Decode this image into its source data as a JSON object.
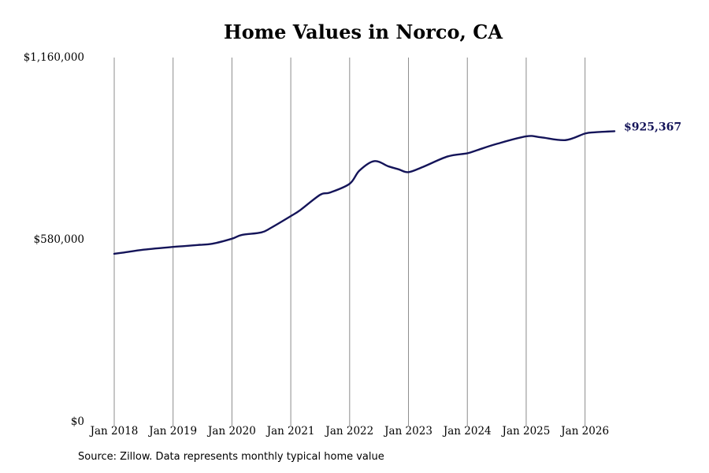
{
  "chart_data": {
    "type": "line",
    "title": "Home Values in Norco, CA",
    "xlabel": "",
    "ylabel": "",
    "ylim": [
      0,
      1160000
    ],
    "y_ticks": [
      0,
      580000,
      1160000
    ],
    "y_tick_labels": [
      "$0",
      "$580,000",
      "$1,160,000"
    ],
    "x_ticks": [
      2018,
      2019,
      2020,
      2021,
      2022,
      2023,
      2024,
      2025,
      2026
    ],
    "x_tick_labels": [
      "Jan 2018",
      "Jan 2019",
      "Jan 2020",
      "Jan 2021",
      "Jan 2022",
      "Jan 2023",
      "Jan 2024",
      "Jan 2025",
      "Jan 2026"
    ],
    "x_range": [
      "Jan 2018",
      "Jul 2026"
    ],
    "grid": "vertical",
    "line_color": "#141459",
    "series": [
      {
        "name": "",
        "points": [
          [
            "Jan 2018",
            535000
          ],
          [
            "Mar 2018",
            539000
          ],
          [
            "Jul 2018",
            548000
          ],
          [
            "Jan 2019",
            557000
          ],
          [
            "Mar 2019",
            559000
          ],
          [
            "Jun 2019",
            563000
          ],
          [
            "Sep 2019",
            567000
          ],
          [
            "Jan 2020",
            583000
          ],
          [
            "Mar 2020",
            595000
          ],
          [
            "Jul 2020",
            603000
          ],
          [
            "Sep 2020",
            618000
          ],
          [
            "Jan 2021",
            655000
          ],
          [
            "Mar 2021",
            675000
          ],
          [
            "Jul 2021",
            723000
          ],
          [
            "Sep 2021",
            730000
          ],
          [
            "Jan 2022",
            758000
          ],
          [
            "Mar 2022",
            800000
          ],
          [
            "Jun 2022",
            830000
          ],
          [
            "Sep 2022",
            813000
          ],
          [
            "Nov 2022",
            804000
          ],
          [
            "Jan 2023",
            795000
          ],
          [
            "Apr 2023",
            812000
          ],
          [
            "Sep 2023",
            845000
          ],
          [
            "Jan 2024",
            855000
          ],
          [
            "Mar 2024",
            865000
          ],
          [
            "Jul 2024",
            885000
          ],
          [
            "Jan 2025",
            909000
          ],
          [
            "Apr 2025",
            906000
          ],
          [
            "Sep 2025",
            897000
          ],
          [
            "Jan 2026",
            918000
          ],
          [
            "Mar 2026",
            922000
          ],
          [
            "Jul 2026",
            925367
          ]
        ]
      }
    ],
    "end_label": "$925,367"
  },
  "footer": {
    "source": "Source: Zillow. Data represents monthly typical home value"
  }
}
